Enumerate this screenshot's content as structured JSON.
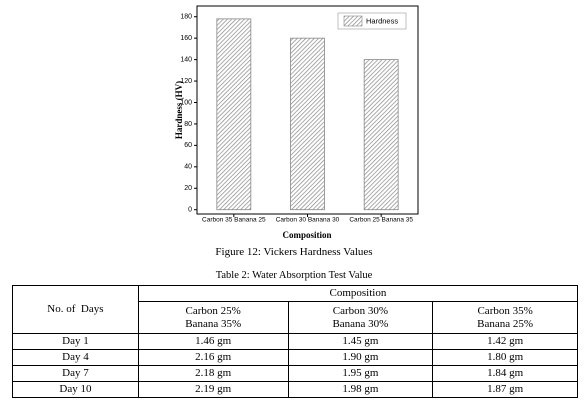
{
  "chart_data": {
    "type": "bar",
    "xlabel": "Composition",
    "ylabel": "Hardness (HV)",
    "categories": [
      "Carbon 35 Banana 25",
      "Carbon 30 Banana 30",
      "Carbon 25 Banana 35"
    ],
    "series": [
      {
        "name": "Hardness",
        "color": "#888888",
        "values": [
          178,
          160,
          140
        ]
      }
    ],
    "ylim": [
      -4,
      190
    ],
    "yticks": [
      0,
      20,
      40,
      60,
      80,
      100,
      120,
      140,
      160,
      180
    ],
    "legend": "upper right",
    "grid": false
  },
  "figure_caption": "Figure 12: Vickers Hardness Values",
  "table": {
    "caption": "Table 2: Water Absorption Test Value",
    "row_header": "No. of  Days",
    "group_header": "Composition",
    "columns": [
      "Carbon 25%\nBanana 35%",
      "Carbon 30%\nBanana 30%",
      "Carbon 35%\nBanana 25%"
    ],
    "rows": [
      [
        "Day 1",
        "1.46 gm",
        "1.45 gm",
        "1.42 gm"
      ],
      [
        "Day 4",
        "2.16 gm",
        "1.90 gm",
        "1.80 gm"
      ],
      [
        "Day 7",
        "2.18 gm",
        "1.95 gm",
        "1.84 gm"
      ],
      [
        "Day 10",
        "2.19 gm",
        "1.98 gm",
        "1.87 gm"
      ]
    ]
  }
}
